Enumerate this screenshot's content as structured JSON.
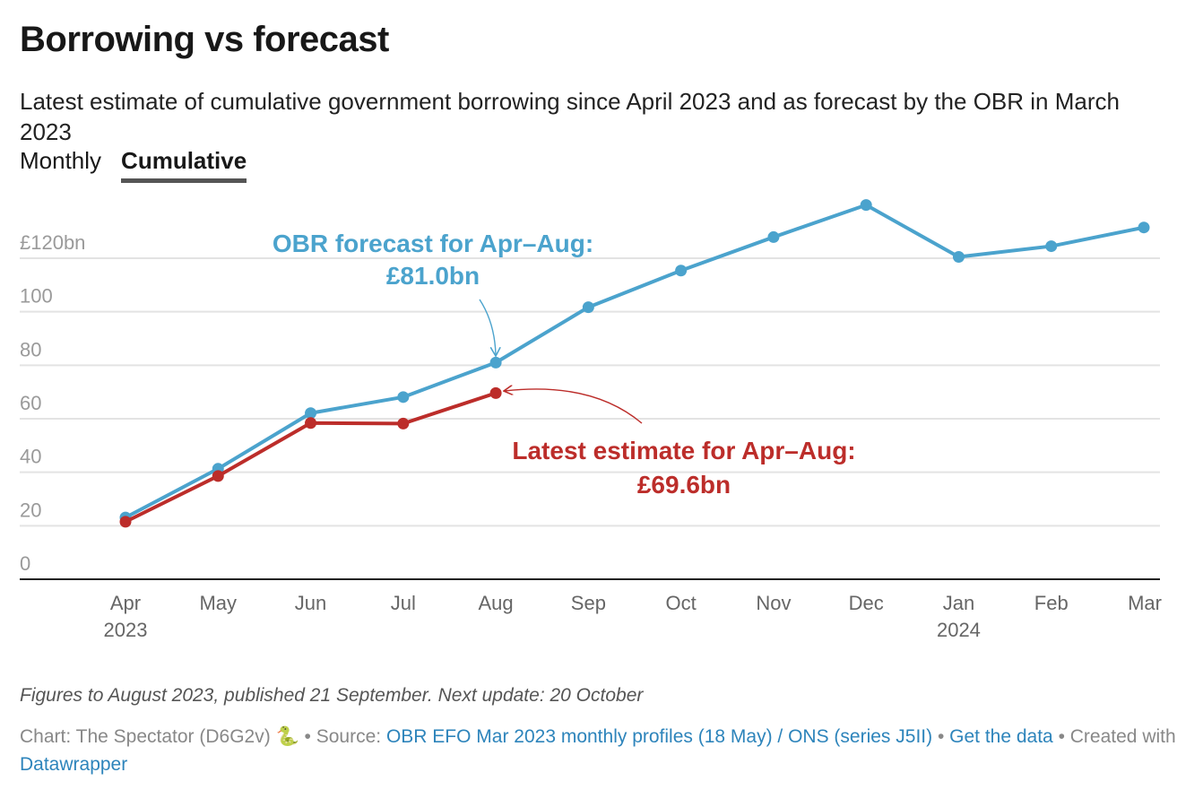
{
  "header": {
    "title": "Borrowing vs forecast",
    "subtitle": "Latest estimate of cumulative government borrowing since April 2023 and as forecast by the OBR in March 2023"
  },
  "tabs": [
    {
      "label": "Monthly",
      "active": false
    },
    {
      "label": "Cumulative",
      "active": true
    }
  ],
  "chart_data": {
    "type": "line",
    "title": "Borrowing vs forecast",
    "xlabel": "",
    "ylabel": "",
    "categories": [
      "Apr",
      "May",
      "Jun",
      "Jul",
      "Aug",
      "Sep",
      "Oct",
      "Nov",
      "Dec",
      "Jan",
      "Feb",
      "Mar"
    ],
    "category_sublabels": [
      "2023",
      "",
      "",
      "",
      "",
      "",
      "",
      "",
      "",
      "2024",
      "",
      ""
    ],
    "y_ticks": [
      0,
      20,
      40,
      60,
      80,
      100,
      120
    ],
    "y_tick_labels": [
      "0",
      "20",
      "40",
      "60",
      "80",
      "100",
      "£120bn"
    ],
    "ylim": [
      0,
      120
    ],
    "grid": true,
    "series": [
      {
        "name": "OBR forecast",
        "color": "#4ba3cd",
        "values": [
          23.1,
          41.3,
          62.1,
          68.1,
          81.0,
          101.7,
          115.4,
          127.9,
          139.9,
          120.5,
          124.5,
          131.5
        ]
      },
      {
        "name": "Latest estimate",
        "color": "#bc2d2a",
        "values": [
          21.5,
          38.6,
          58.4,
          58.2,
          69.6,
          null,
          null,
          null,
          null,
          null,
          null,
          null
        ]
      }
    ],
    "annotations": [
      {
        "series": 0,
        "point": 4,
        "lines": [
          "OBR forecast for Apr–Aug:",
          "£81.0bn"
        ],
        "color": "#4ba3cd"
      },
      {
        "series": 1,
        "point": 4,
        "lines": [
          "Latest estimate for Apr–Aug:",
          "£69.6bn"
        ],
        "color": "#bc2d2a"
      }
    ]
  },
  "notes": "Figures to August 2023, published 21 September. Next update: 20 October",
  "footer": {
    "chart_prefix": "Chart: The Spectator (D6G2v) 🐍 • Source: ",
    "source_link": "OBR EFO Mar 2023 monthly profiles (18 May) / ONS (series J5II)",
    "sep": " • ",
    "data_link": "Get the data",
    "created": " • Created with ",
    "datawrapper_link": "Datawrapper"
  }
}
